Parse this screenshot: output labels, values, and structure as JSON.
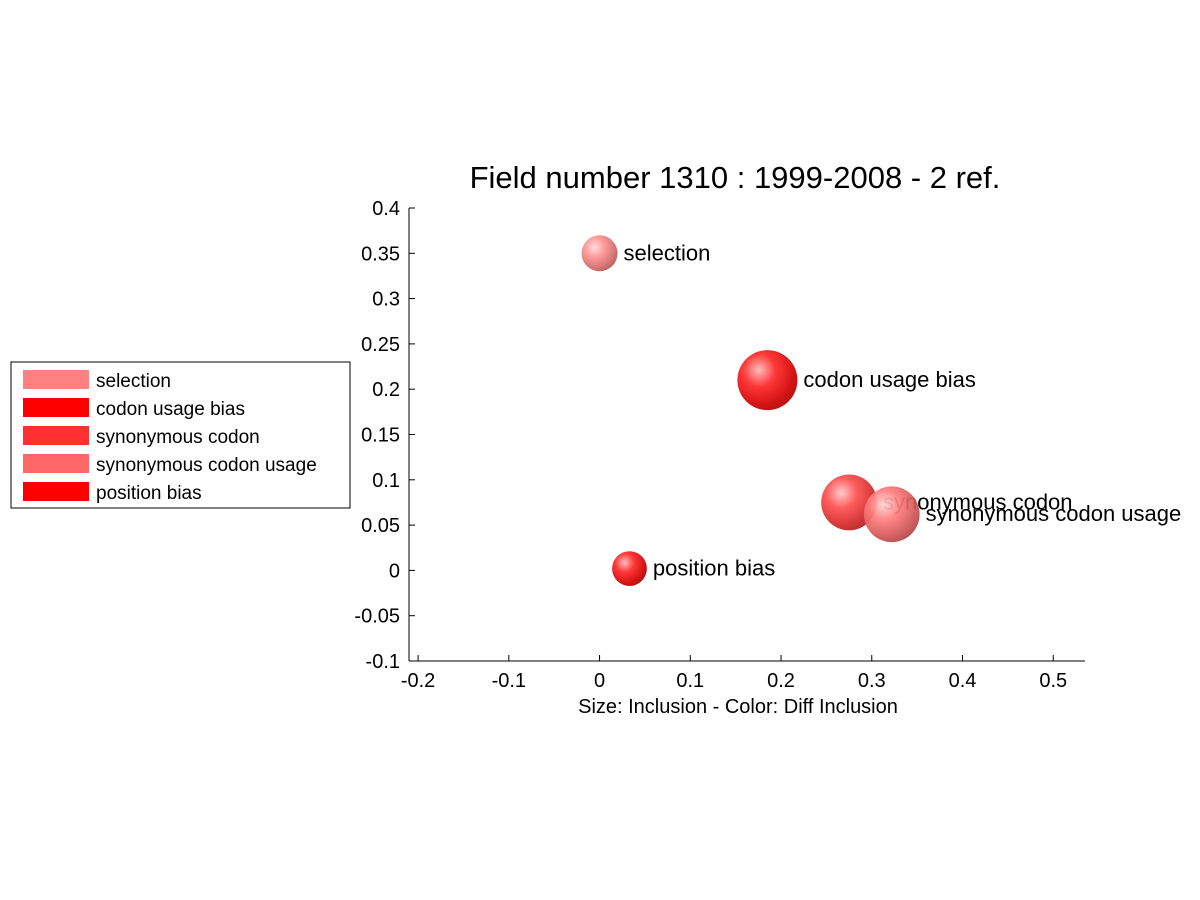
{
  "chart_data": {
    "type": "scatter",
    "title": "Field number 1310 : 1999-2008  - 2 ref.",
    "xlabel": "Size: Inclusion - Color: Diff Inclusion",
    "ylabel": "",
    "xlim": [
      -0.21,
      0.535
    ],
    "ylim": [
      -0.1,
      0.4
    ],
    "xticks": [
      -0.2,
      -0.1,
      0,
      0.1,
      0.2,
      0.3,
      0.4,
      0.5
    ],
    "xtick_labels": [
      "-0.2",
      "-0.1",
      "0",
      "0.1",
      "0.2",
      "0.3",
      "0.4",
      "0.5"
    ],
    "yticks": [
      -0.1,
      -0.05,
      0,
      0.05,
      0.1,
      0.15,
      0.2,
      0.25,
      0.3,
      0.35,
      0.4
    ],
    "ytick_labels": [
      "-0.1",
      "-0.05",
      "0",
      "0.05",
      "0.1",
      "0.15",
      "0.2",
      "0.25",
      "0.3",
      "0.35",
      "0.4"
    ],
    "grid": false,
    "legend_position": "left",
    "points": [
      {
        "label": "selection",
        "x": 0.0,
        "y": 0.35,
        "size": 0.6,
        "color": "#ff8080"
      },
      {
        "label": "codon usage bias",
        "x": 0.185,
        "y": 0.21,
        "size": 1.0,
        "color": "#ff0000"
      },
      {
        "label": "synonymous codon",
        "x": 0.275,
        "y": 0.075,
        "size": 0.93,
        "color": "#ff3030"
      },
      {
        "label": "synonymous codon usage",
        "x": 0.322,
        "y": 0.062,
        "size": 0.93,
        "color": "#ff6666"
      },
      {
        "label": "position bias",
        "x": 0.033,
        "y": 0.002,
        "size": 0.58,
        "color": "#ff0000"
      }
    ]
  }
}
